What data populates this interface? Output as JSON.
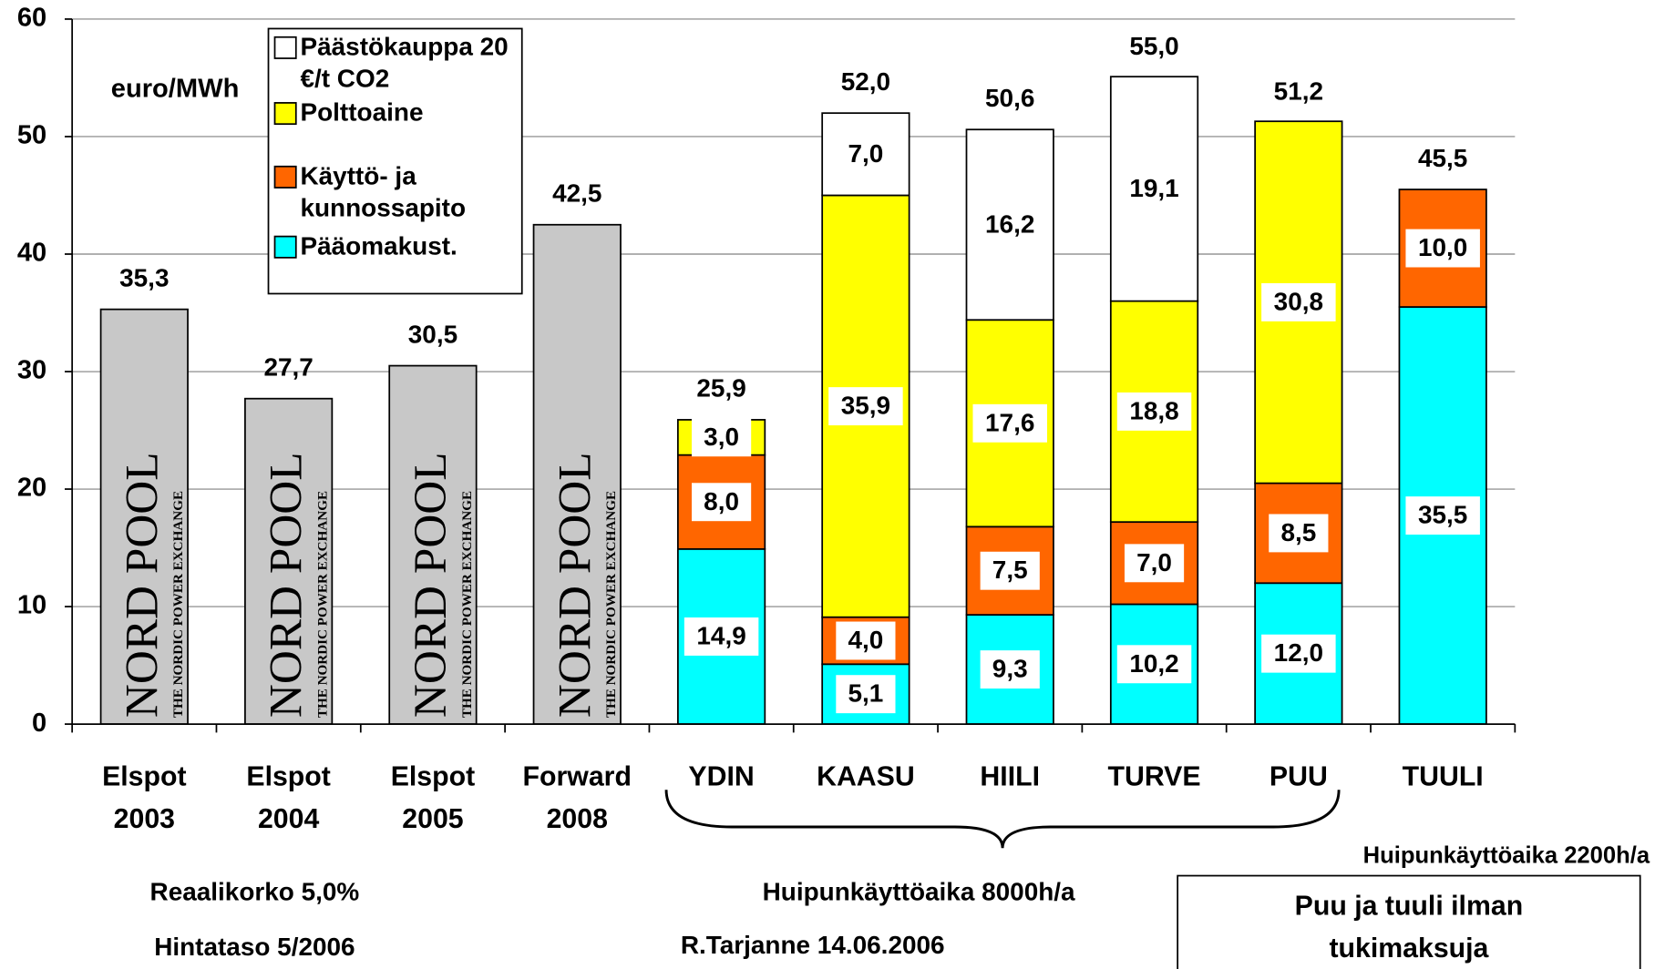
{
  "chart_data": {
    "type": "bar",
    "stacked": true,
    "y_label": "euro/MWh",
    "categories": [
      "Elspot 2003",
      "Elspot 2004",
      "Elspot 2005",
      "Forward 2008",
      "YDIN",
      "KAASU",
      "HIILI",
      "TURVE",
      "PUU",
      "TUULI"
    ],
    "series": [
      {
        "name": "Pääomakust.",
        "color": "#00ffff",
        "values": [
          null,
          null,
          null,
          null,
          14.9,
          5.1,
          9.3,
          10.2,
          12.0,
          35.5
        ],
        "value_labels": [
          null,
          null,
          null,
          null,
          "14,9",
          "5,1",
          "9,3",
          "10,2",
          "12,0",
          "35,5"
        ]
      },
      {
        "name": "Käyttö- ja kunnossapito",
        "color": "#ff6600",
        "values": [
          null,
          null,
          null,
          null,
          8.0,
          4.0,
          7.5,
          7.0,
          8.5,
          10.0
        ],
        "value_labels": [
          null,
          null,
          null,
          null,
          "8,0",
          "4,0",
          "7,5",
          "7,0",
          "8,5",
          "10,0"
        ]
      },
      {
        "name": "Polttoaine",
        "color": "#ffff00",
        "values": [
          null,
          null,
          null,
          null,
          3.0,
          35.9,
          17.6,
          18.8,
          30.8,
          null
        ],
        "value_labels": [
          null,
          null,
          null,
          null,
          "3,0",
          "35,9",
          "17,6",
          "18,8",
          "30,8",
          null
        ]
      },
      {
        "name": "Päästökauppa 20 €/t CO2",
        "color": "#ffffff",
        "values": [
          null,
          null,
          null,
          null,
          null,
          7.0,
          16.2,
          19.1,
          null,
          null
        ],
        "value_labels": [
          null,
          null,
          null,
          null,
          null,
          "7,0",
          "16,2",
          "19,1",
          null,
          null
        ]
      }
    ],
    "price_bars": {
      "label": "NORD POOL",
      "sublabel": "THE NORDIC POWER EXCHANGE",
      "color": "#c8c8c8",
      "values": [
        35.3,
        27.7,
        30.5,
        42.5,
        null,
        null,
        null,
        null,
        null,
        null
      ],
      "value_labels": [
        "35,3",
        "27,7",
        "30,5",
        "42,5",
        null,
        null,
        null,
        null,
        null,
        null
      ]
    },
    "totals": {
      "values": [
        null,
        null,
        null,
        null,
        25.9,
        52.0,
        50.6,
        55.0,
        51.2,
        45.5
      ],
      "value_labels": [
        null,
        null,
        null,
        null,
        "25,9",
        "52,0",
        "50,6",
        "55,0",
        "51,2",
        "45,5"
      ]
    },
    "ylim": [
      0,
      60
    ],
    "yticks": [
      0,
      10,
      20,
      30,
      40,
      50,
      60
    ],
    "grid": true,
    "notes": {
      "rate": "Reaalikorko 5,0%",
      "price_level": "Hintataso 5/2006",
      "peak_8000": "Huipunkäyttöaika 8000h/a",
      "author": "R.Tarjanne 14.06.2006",
      "peak_2200": "Huipunkäyttöaika 2200h/a",
      "subsidy": "Puu ja tuuli ilman tukimaksuja"
    }
  }
}
